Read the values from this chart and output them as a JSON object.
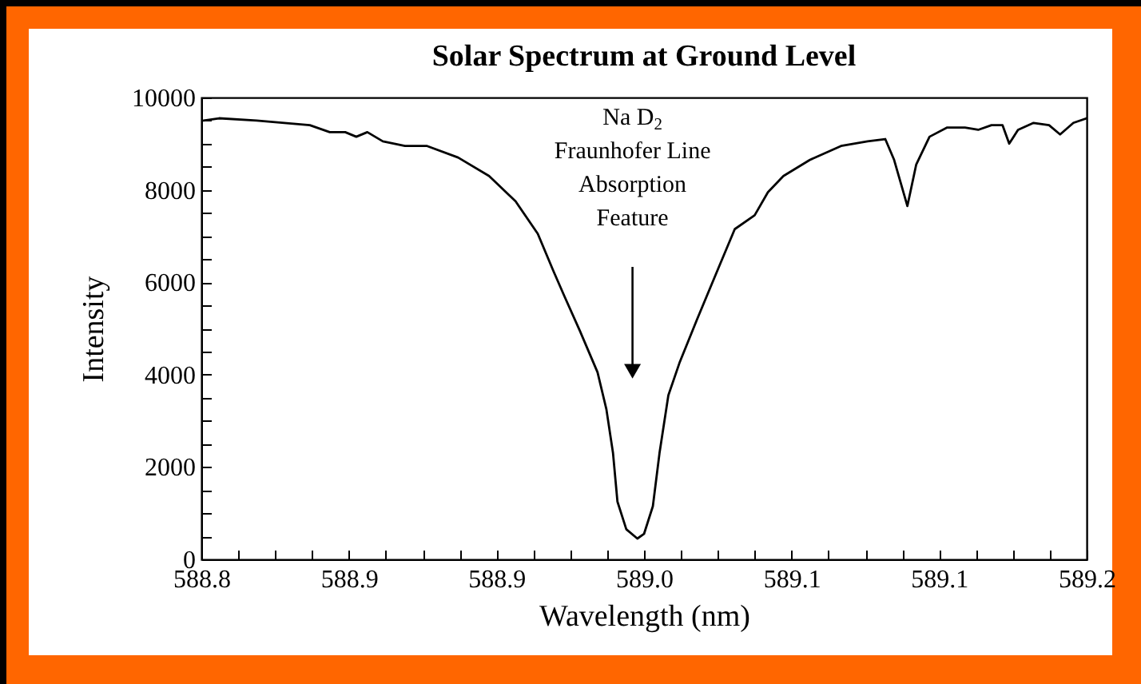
{
  "chart_data": {
    "type": "line",
    "title": "Solar Spectrum at Ground Level",
    "xlabel": "Wavelength (nm)",
    "ylabel": "Intensity",
    "x": [
      588.801,
      588.808,
      588.825,
      588.849,
      588.858,
      588.865,
      588.87,
      588.875,
      588.882,
      588.892,
      588.902,
      588.916,
      588.93,
      588.942,
      588.952,
      588.959,
      588.964,
      588.971,
      588.979,
      588.983,
      588.986,
      588.988,
      588.992,
      588.997,
      589.0,
      589.004,
      589.007,
      589.011,
      589.016,
      589.024,
      589.034,
      589.041,
      589.05,
      589.056,
      589.063,
      589.075,
      589.089,
      589.101,
      589.109,
      589.113,
      589.119,
      589.123,
      589.129,
      589.137,
      589.145,
      589.151,
      589.157,
      589.162,
      589.165,
      589.169,
      589.176,
      589.183,
      589.188,
      589.194,
      589.2
    ],
    "series": [
      {
        "color": "#000000",
        "values": [
          9500,
          9550,
          9500,
          9400,
          9250,
          9250,
          9150,
          9250,
          9050,
          8950,
          8950,
          8700,
          8300,
          7750,
          7050,
          6250,
          5700,
          4950,
          4050,
          3250,
          2300,
          1250,
          650,
          450,
          550,
          1150,
          2300,
          3550,
          4250,
          5200,
          6350,
          7150,
          7450,
          7950,
          8300,
          8650,
          8950,
          9050,
          9100,
          8650,
          7650,
          8550,
          9150,
          9350,
          9350,
          9300,
          9400,
          9400,
          9000,
          9300,
          9450,
          9400,
          9200,
          9450,
          9550
        ]
      }
    ],
    "xlim": [
      588.8,
      589.2
    ],
    "xticks": [
      {
        "value": 588.8,
        "label": "588.8"
      },
      {
        "value": 588.81667,
        "label": null
      },
      {
        "value": 588.83333,
        "label": null
      },
      {
        "value": 588.85,
        "label": null
      },
      {
        "value": 588.86667,
        "label": "588.9"
      },
      {
        "value": 588.88333,
        "label": null
      },
      {
        "value": 588.9,
        "label": null
      },
      {
        "value": 588.91667,
        "label": null
      },
      {
        "value": 588.93333,
        "label": "588.9"
      },
      {
        "value": 588.95,
        "label": null
      },
      {
        "value": 588.96667,
        "label": null
      },
      {
        "value": 588.98333,
        "label": null
      },
      {
        "value": 589.0,
        "label": "589.0"
      },
      {
        "value": 589.01667,
        "label": null
      },
      {
        "value": 589.03333,
        "label": null
      },
      {
        "value": 589.05,
        "label": null
      },
      {
        "value": 589.06667,
        "label": "589.1"
      },
      {
        "value": 589.08333,
        "label": null
      },
      {
        "value": 589.1,
        "label": null
      },
      {
        "value": 589.11667,
        "label": null
      },
      {
        "value": 589.13333,
        "label": "589.1"
      },
      {
        "value": 589.15,
        "label": null
      },
      {
        "value": 589.16667,
        "label": null
      },
      {
        "value": 589.18333,
        "label": null
      },
      {
        "value": 589.2,
        "label": "589.2"
      }
    ],
    "ylim": [
      0,
      10000
    ],
    "yticks": [
      0,
      {
        "value": 500,
        "label": null
      },
      {
        "value": 1000,
        "label": null
      },
      {
        "value": 1500,
        "label": null
      },
      2000,
      {
        "value": 2500,
        "label": null
      },
      {
        "value": 3000,
        "label": null
      },
      {
        "value": 3500,
        "label": null
      },
      4000,
      {
        "value": 4500,
        "label": null
      },
      {
        "value": 5000,
        "label": null
      },
      {
        "value": 5500,
        "label": null
      },
      6000,
      {
        "value": 6500,
        "label": null
      },
      {
        "value": 7000,
        "label": null
      },
      {
        "value": 7500,
        "label": null
      },
      8000,
      {
        "value": 8500,
        "label": null
      },
      {
        "value": 9000,
        "label": null
      },
      {
        "value": 9500,
        "label": null
      },
      10000
    ],
    "grid": false,
    "line_style": "solid",
    "annotations": [
      "Na D$_{2}$\nFraunhofer Line\nAbsorption\nFeature"
    ]
  }
}
